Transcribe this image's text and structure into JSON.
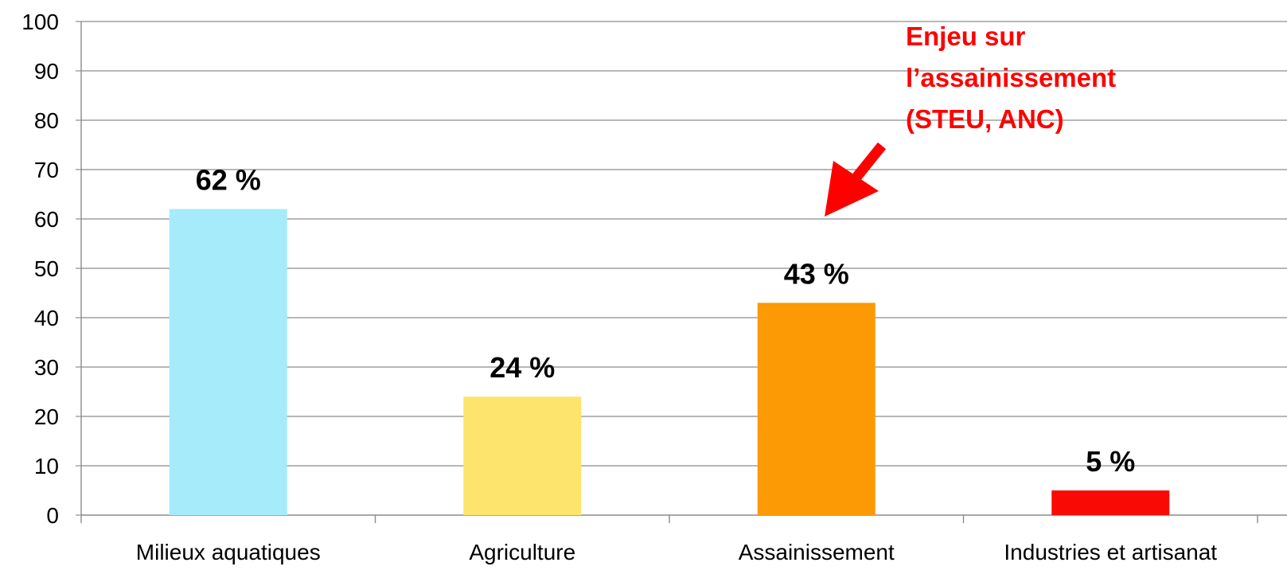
{
  "chart_data": {
    "type": "bar",
    "categories": [
      "Milieux aquatiques",
      "Agriculture",
      "Assainissement",
      "Industries et artisanat"
    ],
    "values": [
      62,
      24,
      43,
      5
    ],
    "data_labels": [
      "62 %",
      "24 %",
      "43 %",
      "5 %"
    ],
    "bar_colors": [
      "#a6ebfa",
      "#fde46c",
      "#fb9a05",
      "#fa0a05"
    ],
    "ylim": [
      0,
      100
    ],
    "yticks": [
      0,
      10,
      20,
      30,
      40,
      50,
      60,
      70,
      80,
      90,
      100
    ],
    "grid": true,
    "annotation": {
      "lines": [
        "Enjeu sur",
        "l’assainissement",
        "(STEU, ANC)"
      ],
      "color": "#ff0000",
      "points_to": "Assainissement"
    }
  }
}
